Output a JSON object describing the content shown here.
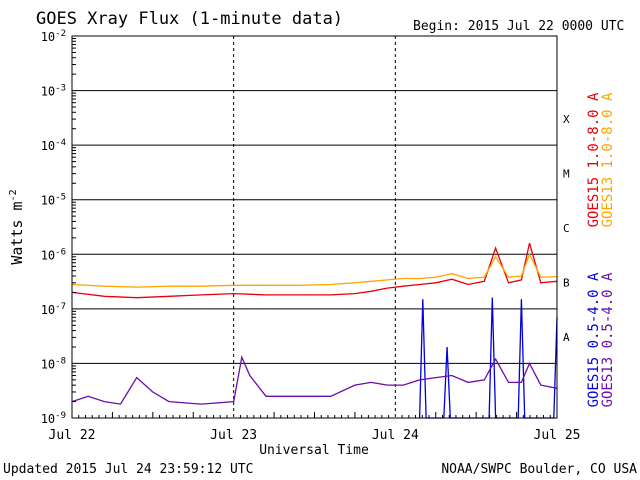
{
  "chart_data": {
    "type": "line",
    "title": "GOES Xray Flux (1-minute data)",
    "begin_label": "Begin:  2015 Jul 22 0000 UTC",
    "xlabel": "Universal Time",
    "ylabel": "Watts m",
    "ylabel_exp": "-2",
    "y_scale": "log",
    "ylim": [
      1e-09,
      0.01
    ],
    "xlim_days": [
      0,
      3
    ],
    "x_ticks": [
      {
        "day": 0,
        "label": "Jul 22"
      },
      {
        "day": 1,
        "label": "Jul 23"
      },
      {
        "day": 2,
        "label": "Jul 24"
      },
      {
        "day": 3,
        "label": "Jul 25"
      }
    ],
    "y_ticks": [
      {
        "exp": -2,
        "label": "10",
        "sup": "-2"
      },
      {
        "exp": -3,
        "label": "10",
        "sup": "-3"
      },
      {
        "exp": -4,
        "label": "10",
        "sup": "-4"
      },
      {
        "exp": -5,
        "label": "10",
        "sup": "-5"
      },
      {
        "exp": -6,
        "label": "10",
        "sup": "-6"
      },
      {
        "exp": -7,
        "label": "10",
        "sup": "-7"
      },
      {
        "exp": -8,
        "label": "10",
        "sup": "-8"
      },
      {
        "exp": -9,
        "label": "10",
        "sup": "-9"
      }
    ],
    "flare_classes": [
      {
        "label": "X",
        "exp": -3.5
      },
      {
        "label": "M",
        "exp": -4.5
      },
      {
        "label": "C",
        "exp": -5.5
      },
      {
        "label": "B",
        "exp": -6.5
      },
      {
        "label": "A",
        "exp": -7.5
      }
    ],
    "grid": true,
    "series": [
      {
        "name": "GOES15 1.0-8.0 A",
        "color": "#e8000b",
        "x": [
          0,
          0.2,
          0.4,
          0.6,
          0.8,
          1.0,
          1.2,
          1.4,
          1.6,
          1.75,
          1.85,
          1.95,
          2.05,
          2.15,
          2.25,
          2.35,
          2.45,
          2.55,
          2.62,
          2.7,
          2.78,
          2.83,
          2.9,
          3.0
        ],
        "y": [
          2e-07,
          1.7e-07,
          1.6e-07,
          1.7e-07,
          1.8e-07,
          1.9e-07,
          1.8e-07,
          1.8e-07,
          1.8e-07,
          1.9e-07,
          2.1e-07,
          2.4e-07,
          2.6e-07,
          2.8e-07,
          3e-07,
          3.5e-07,
          2.8e-07,
          3.2e-07,
          1.3e-06,
          3e-07,
          3.4e-07,
          1.6e-06,
          3e-07,
          3.2e-07
        ]
      },
      {
        "name": "GOES13 1.0-8.0 A",
        "color": "#ffa500",
        "x": [
          0,
          0.2,
          0.4,
          0.6,
          0.8,
          1.0,
          1.2,
          1.4,
          1.6,
          1.75,
          1.85,
          1.95,
          2.05,
          2.15,
          2.25,
          2.35,
          2.45,
          2.55,
          2.62,
          2.7,
          2.78,
          2.83,
          2.9,
          3.0
        ],
        "y": [
          2.8e-07,
          2.6e-07,
          2.5e-07,
          2.6e-07,
          2.6e-07,
          2.7e-07,
          2.7e-07,
          2.7e-07,
          2.8e-07,
          3e-07,
          3.2e-07,
          3.4e-07,
          3.6e-07,
          3.6e-07,
          3.8e-07,
          4.4e-07,
          3.6e-07,
          3.8e-07,
          9e-07,
          3.8e-07,
          4e-07,
          1e-06,
          3.8e-07,
          3.9e-07
        ]
      },
      {
        "name": "GOES15 0.5-4.0 A",
        "color": "#0000e0",
        "x": [
          2.15,
          2.17,
          2.19,
          2.3,
          2.32,
          2.34,
          2.58,
          2.6,
          2.62,
          2.76,
          2.78,
          2.8,
          2.98,
          3.0
        ],
        "y": [
          1e-09,
          1.5e-07,
          1e-09,
          1e-09,
          2e-08,
          1e-09,
          1e-09,
          1.6e-07,
          1e-09,
          1e-09,
          1.5e-07,
          1e-09,
          1e-09,
          7e-08
        ]
      },
      {
        "name": "GOES13 0.5-4.0 A",
        "color": "#6a0dad",
        "x": [
          0,
          0.1,
          0.2,
          0.3,
          0.4,
          0.5,
          0.6,
          0.8,
          1.0,
          1.05,
          1.1,
          1.2,
          1.4,
          1.6,
          1.75,
          1.85,
          1.95,
          2.05,
          2.15,
          2.25,
          2.35,
          2.45,
          2.55,
          2.62,
          2.7,
          2.78,
          2.83,
          2.9,
          3.0
        ],
        "y": [
          2e-09,
          2.5e-09,
          2e-09,
          1.8e-09,
          5.5e-09,
          3e-09,
          2e-09,
          1.8e-09,
          2e-09,
          1.3e-08,
          6e-09,
          2.5e-09,
          2.5e-09,
          2.5e-09,
          4e-09,
          4.5e-09,
          4e-09,
          4e-09,
          5e-09,
          5.5e-09,
          6e-09,
          4.5e-09,
          5e-09,
          1.2e-08,
          4.5e-09,
          4.5e-09,
          1e-08,
          4e-09,
          3.5e-09
        ]
      }
    ]
  },
  "footer": {
    "updated": "Updated 2015 Jul 24 23:59:12 UTC",
    "credit": "NOAA/SWPC Boulder, CO USA"
  }
}
